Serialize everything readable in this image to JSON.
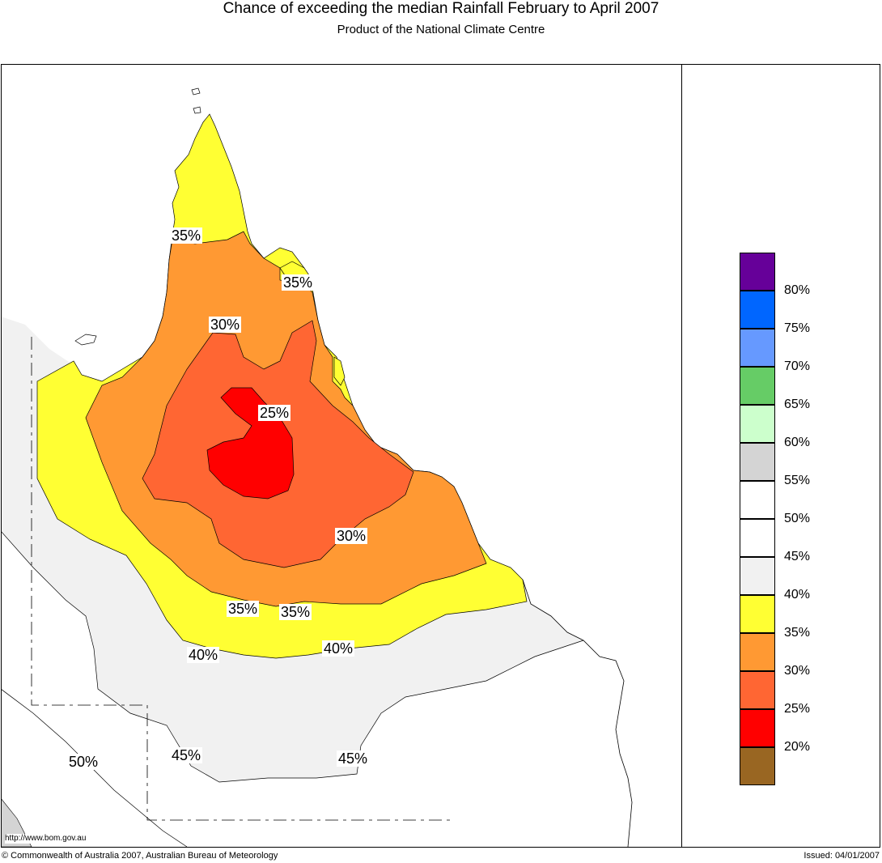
{
  "header": {
    "title": "Chance of exceeding the median Rainfall February to April 2007",
    "subtitle": "Product of the National Climate Centre"
  },
  "map": {
    "region_colors": {
      "above_50": "#f1f1f1",
      "range_35_40": "#ffff33",
      "range_30_35": "#ff9933",
      "range_25_30": "#ff6633",
      "range_20_25": "#ff0000",
      "outside": "#ffffff"
    },
    "contour_labels": [
      {
        "id": "c35a",
        "text": "35%"
      },
      {
        "id": "c35b",
        "text": "35%"
      },
      {
        "id": "c30a",
        "text": "30%"
      },
      {
        "id": "c25",
        "text": "25%"
      },
      {
        "id": "c30b",
        "text": "30%"
      },
      {
        "id": "c35c",
        "text": "35%"
      },
      {
        "id": "c35d",
        "text": "35%"
      },
      {
        "id": "c40a",
        "text": "40%"
      },
      {
        "id": "c40b",
        "text": "40%"
      },
      {
        "id": "c45a",
        "text": "45%"
      },
      {
        "id": "c45b",
        "text": "45%"
      },
      {
        "id": "c50",
        "text": "50%"
      }
    ],
    "url": "http://www.bom.gov.au"
  },
  "legend": {
    "items": [
      {
        "color": "#660099",
        "label": "80%"
      },
      {
        "color": "#0066ff",
        "label": "75%"
      },
      {
        "color": "#6699ff",
        "label": "70%"
      },
      {
        "color": "#66cc66",
        "label": "65%"
      },
      {
        "color": "#ccffcc",
        "label": "60%"
      },
      {
        "color": "#d4d4d4",
        "label": "55%"
      },
      {
        "color": "#ffffff",
        "label": "50%"
      },
      {
        "color": "#ffffff",
        "label": "45%"
      },
      {
        "color": "#f1f1f1",
        "label": "40%"
      },
      {
        "color": "#ffff33",
        "label": "35%"
      },
      {
        "color": "#ff9933",
        "label": "30%"
      },
      {
        "color": "#ff6633",
        "label": "25%"
      },
      {
        "color": "#ff0000",
        "label": "20%"
      },
      {
        "color": "#996622",
        "label": ""
      }
    ]
  },
  "footer": {
    "copyright": "© Commonwealth of Australia 2007, Australian Bureau of Meteorology",
    "issued": "Issued: 04/01/2007"
  }
}
